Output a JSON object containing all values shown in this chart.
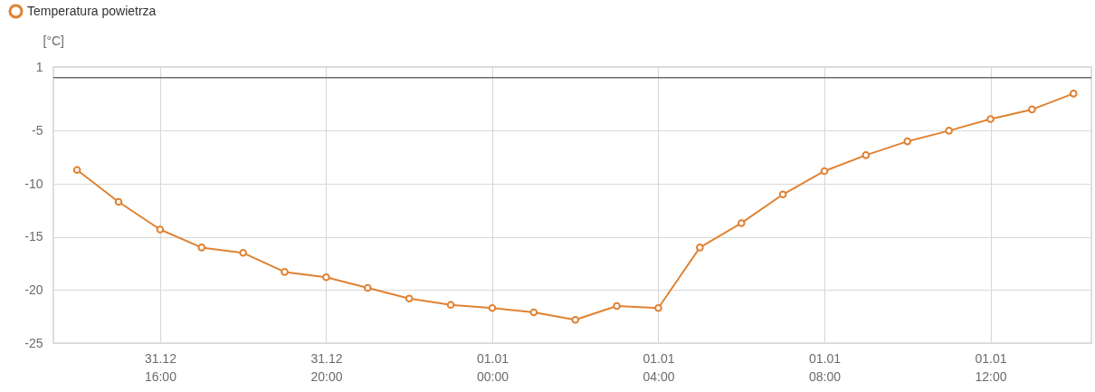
{
  "chart_data": {
    "type": "line",
    "ylabel": "[°C]",
    "categories": [
      null,
      null,
      "31.12\n16:00",
      null,
      null,
      null,
      "31.12\n20:00",
      null,
      null,
      null,
      "01.01\n00:00",
      null,
      null,
      null,
      "01.01\n04:00",
      null,
      null,
      null,
      "01.01\n08:00",
      null,
      null,
      null,
      "01.01\n12:00",
      null,
      null
    ],
    "series": [
      {
        "name": "Temperatura powietrza",
        "color": "#e08232",
        "values": [
          -8.7,
          -11.7,
          -14.3,
          -16.0,
          -16.5,
          -18.3,
          -18.8,
          -19.8,
          -20.8,
          -21.4,
          -21.7,
          -22.1,
          -22.8,
          -21.5,
          -21.7,
          -16.0,
          -13.7,
          -11.0,
          -8.8,
          -7.3,
          -6.0,
          -5.0,
          -3.9,
          -3.0,
          -1.5
        ]
      }
    ],
    "ylim": [
      -25,
      1
    ],
    "yticks": [
      1,
      -5,
      -10,
      -15,
      -20,
      -25
    ],
    "ref_lines": [
      {
        "axis": "y",
        "value": 0,
        "color": "#696c72"
      }
    ],
    "grid": true,
    "legend": "top left",
    "marker": "circle",
    "line_style": "solid"
  }
}
